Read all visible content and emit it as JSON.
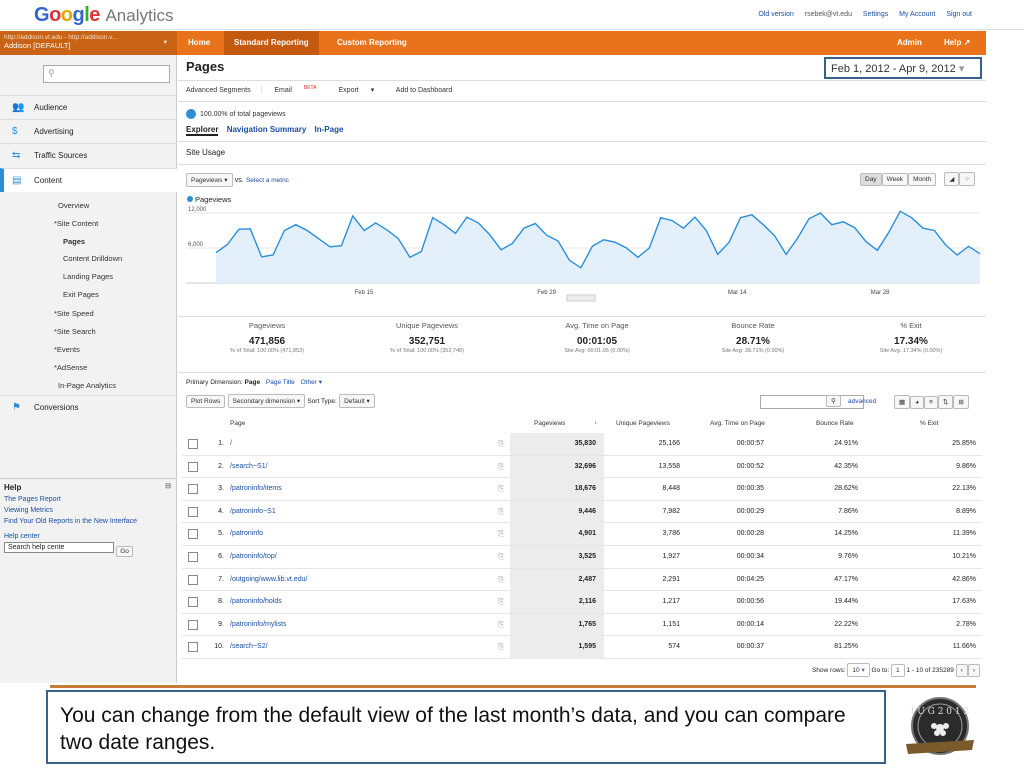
{
  "header": {
    "logo": "Google",
    "logo_sub": "Analytics",
    "links": [
      "Old version",
      "rsebek@vt.edu",
      "Settings",
      "My Account",
      "Sign out"
    ]
  },
  "account": {
    "line1": "http://addison.vt.edu - http://addison.v...",
    "line2": "Addison [DEFAULT]"
  },
  "nav": {
    "home": "Home",
    "standard": "Standard Reporting",
    "custom": "Custom Reporting",
    "admin": "Admin",
    "help": "Help"
  },
  "sidebar": {
    "search_placeholder": "",
    "sections": [
      "Audience",
      "Advertising",
      "Traffic Sources",
      "Content"
    ],
    "content_items": [
      "Overview",
      "*Site Content",
      "Pages",
      "Content Drilldown",
      "Landing Pages",
      "Exit Pages",
      "*Site Speed",
      "*Site Search",
      "*Events",
      "*AdSense",
      "In-Page Analytics"
    ],
    "conversions": "Conversions",
    "help_title": "Help",
    "help_links": [
      "The Pages Report",
      "Viewing Metrics",
      "Find Your Old Reports in the New Interface"
    ],
    "help_center": "Help center",
    "help_search_value": "Search help cente",
    "help_go": "Go"
  },
  "main": {
    "title": "Pages",
    "date_range": "Feb 1, 2012 - Apr 9, 2012",
    "toolbar": [
      "Advanced Segments",
      "Email",
      "BETA",
      "Export",
      "Add to Dashboard"
    ],
    "segment": "100.00% of total pageviews",
    "tabs": [
      "Explorer",
      "Navigation Summary",
      "In-Page"
    ],
    "site_usage": "Site Usage",
    "metric_select": "Pageviews",
    "vs": "vs.",
    "select_metric": "Select a metric",
    "granularity": [
      "Day",
      "Week",
      "Month"
    ]
  },
  "chart_data": {
    "type": "line",
    "legend": "Pageviews",
    "y_ticks": [
      "12,000",
      "6,000"
    ],
    "ylim": [
      0,
      12000
    ],
    "x_ticks": [
      "Feb 15",
      "Feb 29",
      "Mar 14",
      "Mar 28"
    ],
    "series": [
      {
        "name": "Pageviews",
        "values": [
          5200,
          6600,
          9200,
          9300,
          4500,
          4800,
          9000,
          10000,
          9000,
          7600,
          6200,
          6400,
          11500,
          9000,
          10300,
          9100,
          7600,
          4400,
          5400,
          11200,
          10000,
          8500,
          11300,
          10300,
          8300,
          5700,
          6800,
          9400,
          10200,
          8200,
          7200,
          3900,
          2600,
          6300,
          7400,
          7000,
          6000,
          4400,
          6000,
          11200,
          10700,
          9400,
          11300,
          9000,
          4900,
          7000,
          11200,
          11700,
          10000,
          8100,
          4900,
          7700,
          11000,
          12000,
          10000,
          10500,
          9500,
          7100,
          5600,
          8700,
          12300,
          11200,
          9400,
          9000,
          6500,
          4800,
          6300,
          5000
        ]
      }
    ]
  },
  "summary": [
    {
      "title": "Pageviews",
      "value": "471,856",
      "sub": "% of Total: 100.00% (471,853)"
    },
    {
      "title": "Unique Pageviews",
      "value": "352,751",
      "sub": "% of Total: 100.00% (352,748)"
    },
    {
      "title": "Avg. Time on Page",
      "value": "00:01:05",
      "sub": "Site Avg: 00:01:05 (0.00%)"
    },
    {
      "title": "Bounce Rate",
      "value": "28.71%",
      "sub": "Site Avg: 28.71% (0.00%)"
    },
    {
      "title": "% Exit",
      "value": "17.34%",
      "sub": "Site Avg: 17.34% (0.00%)"
    }
  ],
  "table": {
    "primary_dimension_label": "Primary Dimension:",
    "primary_dimension": "Page",
    "page_title": "Page Title",
    "other": "Other",
    "plot_rows": "Plot Rows",
    "secondary_dimension": "Secondary dimension",
    "sort_type_label": "Sort Type:",
    "sort_type": "Default",
    "advanced": "advanced",
    "columns": [
      "Page",
      "Pageviews",
      "Unique Pageviews",
      "Avg. Time on Page",
      "Bounce Rate",
      "% Exit"
    ],
    "rows": [
      {
        "n": "1.",
        "page": "/",
        "pv": "35,830",
        "upv": "25,166",
        "time": "00:00:57",
        "bounce": "24.91%",
        "exit": "25.85%"
      },
      {
        "n": "2.",
        "page": "/search~S1/",
        "pv": "32,696",
        "upv": "13,558",
        "time": "00:00:52",
        "bounce": "42.35%",
        "exit": "9.86%"
      },
      {
        "n": "3.",
        "page": "/patroninfo/items",
        "pv": "18,676",
        "upv": "8,448",
        "time": "00:00:35",
        "bounce": "28.62%",
        "exit": "22.13%"
      },
      {
        "n": "4.",
        "page": "/patroninfo~S1",
        "pv": "9,446",
        "upv": "7,982",
        "time": "00:00:29",
        "bounce": "7.86%",
        "exit": "8.89%"
      },
      {
        "n": "5.",
        "page": "/patroninfo",
        "pv": "4,901",
        "upv": "3,786",
        "time": "00:00:28",
        "bounce": "14.25%",
        "exit": "11.39%"
      },
      {
        "n": "6.",
        "page": "/patroninfo/top/",
        "pv": "3,525",
        "upv": "1,927",
        "time": "00:00:34",
        "bounce": "9.76%",
        "exit": "10.21%"
      },
      {
        "n": "7.",
        "page": "/outgoing/www.lib.vt.edu/",
        "pv": "2,487",
        "upv": "2,291",
        "time": "00:04:25",
        "bounce": "47.17%",
        "exit": "42.86%"
      },
      {
        "n": "8.",
        "page": "/patroninfo/holds",
        "pv": "2,116",
        "upv": "1,217",
        "time": "00:00:56",
        "bounce": "19.44%",
        "exit": "17.63%"
      },
      {
        "n": "9.",
        "page": "/patroninfo/mylists",
        "pv": "1,765",
        "upv": "1,151",
        "time": "00:00:14",
        "bounce": "22.22%",
        "exit": "2.78%"
      },
      {
        "n": "10.",
        "page": "/search~S2/",
        "pv": "1,595",
        "upv": "574",
        "time": "00:00:37",
        "bounce": "81.25%",
        "exit": "11.66%"
      }
    ],
    "show_rows_label": "Show rows:",
    "show_rows": "10",
    "goto_label": "Go to:",
    "goto_value": "1",
    "range": "1 - 10 of 235289"
  },
  "caption": "You can change from the default view of the last month’s data, and you can compare two date ranges.",
  "colors": {
    "orange": "#e8731a",
    "frame": "#3b5f8c",
    "line": "#2a8fd8"
  }
}
